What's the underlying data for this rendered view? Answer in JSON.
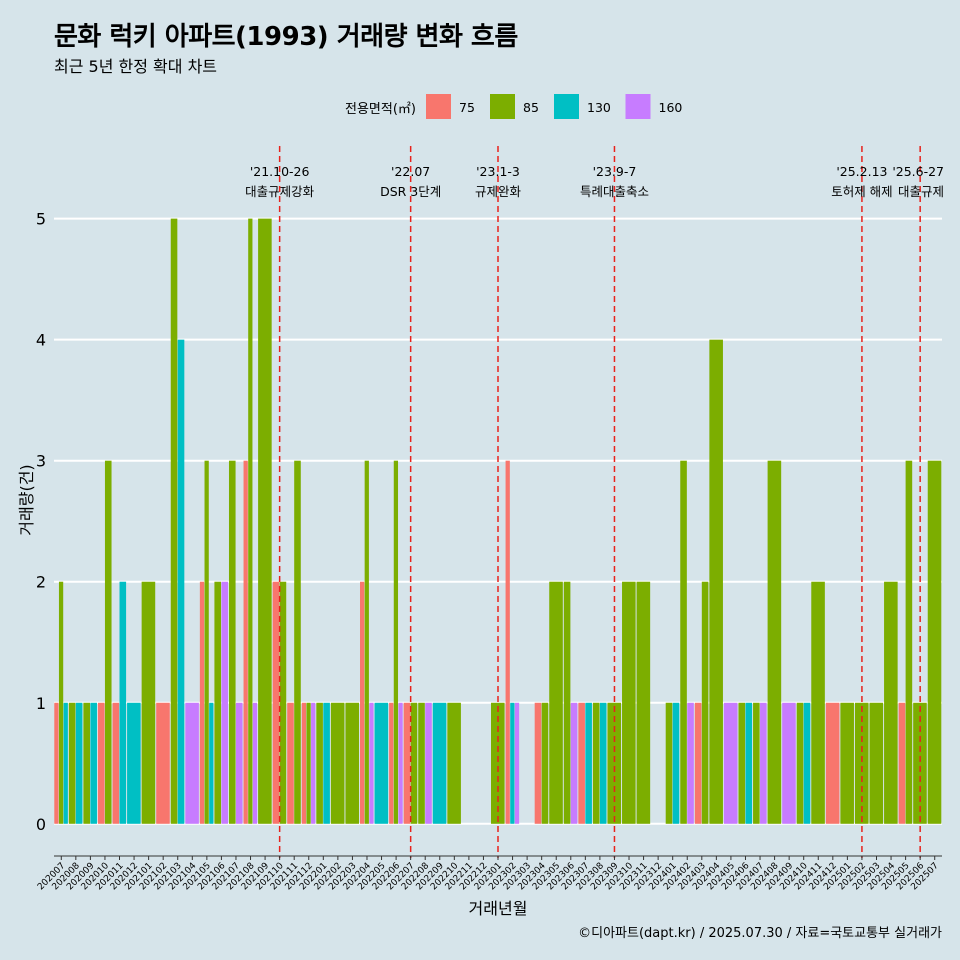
{
  "header": {
    "title": "문화 럭키 아파트(1993) 거래량 변화 흐름",
    "subtitle": "최근 5년 한정 확대 차트"
  },
  "caption": "©디아파트(dapt.kr) / 2025.07.30 / 자료=국토교통부 실거래가",
  "chart_data": {
    "type": "bar",
    "xlabel": "거래년월",
    "ylabel": "거래량(건)",
    "ylim": [
      -0.2,
      5.6
    ],
    "yticks": [
      0,
      1,
      2,
      3,
      4,
      5
    ],
    "grid": "horizontal",
    "legend": {
      "title": "전용면적(㎡)",
      "placement": "top"
    },
    "series": [
      {
        "name": "75",
        "color": "#f8766d"
      },
      {
        "name": "85",
        "color": "#7cae00"
      },
      {
        "name": "130",
        "color": "#00bfc4"
      },
      {
        "name": "160",
        "color": "#c77cff"
      }
    ],
    "categories": [
      "202007",
      "202008",
      "202009",
      "202010",
      "202011",
      "202012",
      "202101",
      "202102",
      "202103",
      "202104",
      "202105",
      "202106",
      "202107",
      "202108",
      "202109",
      "202110",
      "202111",
      "202112",
      "202201",
      "202202",
      "202203",
      "202204",
      "202205",
      "202206",
      "202207",
      "202208",
      "202209",
      "202210",
      "202211",
      "202212",
      "202301",
      "202302",
      "202303",
      "202304",
      "202305",
      "202306",
      "202307",
      "202308",
      "202309",
      "202310",
      "202311",
      "202312",
      "202401",
      "202402",
      "202403",
      "202404",
      "202405",
      "202406",
      "202407",
      "202408",
      "202409",
      "202410",
      "202411",
      "202412",
      "202501",
      "202502",
      "202503",
      "202504",
      "202505",
      "202506",
      "202507"
    ],
    "data": [
      {
        "month": "202007",
        "values": [
          1,
          2,
          1,
          0
        ]
      },
      {
        "month": "202008",
        "values": [
          0,
          1,
          1,
          0
        ]
      },
      {
        "month": "202009",
        "values": [
          0,
          1,
          1,
          0
        ]
      },
      {
        "month": "202010",
        "values": [
          1,
          3,
          0,
          0
        ]
      },
      {
        "month": "202011",
        "values": [
          1,
          0,
          2,
          0
        ]
      },
      {
        "month": "202012",
        "values": [
          0,
          0,
          1,
          0
        ]
      },
      {
        "month": "202101",
        "values": [
          0,
          2,
          0,
          0
        ]
      },
      {
        "month": "202102",
        "values": [
          1,
          0,
          0,
          0
        ]
      },
      {
        "month": "202103",
        "values": [
          0,
          5,
          4,
          0
        ]
      },
      {
        "month": "202104",
        "values": [
          0,
          0,
          0,
          1
        ]
      },
      {
        "month": "202105",
        "values": [
          2,
          3,
          1,
          0
        ]
      },
      {
        "month": "202106",
        "values": [
          0,
          2,
          0,
          2
        ]
      },
      {
        "month": "202107",
        "values": [
          0,
          3,
          0,
          1
        ]
      },
      {
        "month": "202108",
        "values": [
          3,
          5,
          0,
          1
        ]
      },
      {
        "month": "202109",
        "values": [
          0,
          5,
          0,
          0
        ]
      },
      {
        "month": "202110",
        "values": [
          2,
          2,
          0,
          0
        ]
      },
      {
        "month": "202111",
        "values": [
          1,
          3,
          0,
          0
        ]
      },
      {
        "month": "202112",
        "values": [
          1,
          1,
          0,
          1
        ]
      },
      {
        "month": "202201",
        "values": [
          0,
          1,
          1,
          0
        ]
      },
      {
        "month": "202202",
        "values": [
          0,
          1,
          0,
          0
        ]
      },
      {
        "month": "202203",
        "values": [
          0,
          1,
          0,
          0
        ]
      },
      {
        "month": "202204",
        "values": [
          2,
          3,
          0,
          1
        ]
      },
      {
        "month": "202205",
        "values": [
          0,
          0,
          1,
          0
        ]
      },
      {
        "month": "202206",
        "values": [
          1,
          3,
          0,
          1
        ]
      },
      {
        "month": "202207",
        "values": [
          1,
          1,
          0,
          0
        ]
      },
      {
        "month": "202208",
        "values": [
          0,
          1,
          0,
          1
        ]
      },
      {
        "month": "202209",
        "values": [
          0,
          0,
          1,
          0
        ]
      },
      {
        "month": "202210",
        "values": [
          0,
          1,
          0,
          0
        ]
      },
      {
        "month": "202211",
        "values": [
          0,
          0,
          0,
          0
        ]
      },
      {
        "month": "202212",
        "values": [
          0,
          0,
          0,
          0
        ]
      },
      {
        "month": "202301",
        "values": [
          0,
          1,
          0,
          0
        ]
      },
      {
        "month": "202302",
        "values": [
          3,
          0,
          1,
          1
        ]
      },
      {
        "month": "202303",
        "values": [
          0,
          0,
          0,
          0
        ]
      },
      {
        "month": "202304",
        "values": [
          1,
          1,
          0,
          0
        ]
      },
      {
        "month": "202305",
        "values": [
          0,
          2,
          0,
          0
        ]
      },
      {
        "month": "202306",
        "values": [
          0,
          2,
          0,
          1
        ]
      },
      {
        "month": "202307",
        "values": [
          1,
          0,
          1,
          0
        ]
      },
      {
        "month": "202308",
        "values": [
          0,
          1,
          1,
          0
        ]
      },
      {
        "month": "202309",
        "values": [
          0,
          1,
          0,
          0
        ]
      },
      {
        "month": "202310",
        "values": [
          0,
          2,
          0,
          0
        ]
      },
      {
        "month": "202311",
        "values": [
          0,
          2,
          0,
          0
        ]
      },
      {
        "month": "202312",
        "values": [
          0,
          0,
          0,
          0
        ]
      },
      {
        "month": "202401",
        "values": [
          0,
          1,
          1,
          0
        ]
      },
      {
        "month": "202402",
        "values": [
          0,
          3,
          0,
          1
        ]
      },
      {
        "month": "202403",
        "values": [
          1,
          2,
          0,
          0
        ]
      },
      {
        "month": "202404",
        "values": [
          0,
          4,
          0,
          0
        ]
      },
      {
        "month": "202405",
        "values": [
          0,
          0,
          0,
          1
        ]
      },
      {
        "month": "202406",
        "values": [
          0,
          1,
          1,
          0
        ]
      },
      {
        "month": "202407",
        "values": [
          0,
          1,
          0,
          1
        ]
      },
      {
        "month": "202408",
        "values": [
          0,
          3,
          0,
          0
        ]
      },
      {
        "month": "202409",
        "values": [
          0,
          0,
          0,
          1
        ]
      },
      {
        "month": "202410",
        "values": [
          0,
          1,
          1,
          0
        ]
      },
      {
        "month": "202411",
        "values": [
          0,
          2,
          0,
          0
        ]
      },
      {
        "month": "202412",
        "values": [
          1,
          0,
          0,
          0
        ]
      },
      {
        "month": "202501",
        "values": [
          0,
          1,
          0,
          0
        ]
      },
      {
        "month": "202502",
        "values": [
          0,
          1,
          0,
          0
        ]
      },
      {
        "month": "202503",
        "values": [
          0,
          1,
          0,
          0
        ]
      },
      {
        "month": "202504",
        "values": [
          0,
          2,
          0,
          0
        ]
      },
      {
        "month": "202505",
        "values": [
          1,
          3,
          0,
          0
        ]
      },
      {
        "month": "202506",
        "values": [
          0,
          1,
          0,
          0
        ]
      },
      {
        "month": "202507",
        "values": [
          0,
          3,
          0,
          0
        ]
      }
    ],
    "events": [
      {
        "month": "202110",
        "date": "'21.10-26",
        "label": "대출규제강화"
      },
      {
        "month": "202207",
        "date": "'22.07",
        "label": "DSR 3단계"
      },
      {
        "month": "202301",
        "date": "'23.1-3",
        "label": "규제완화"
      },
      {
        "month": "202309",
        "date": "'23.9-7",
        "label": "특례대출축소"
      },
      {
        "month": "202502",
        "date": "'25.2.13",
        "label": "토허제 해제"
      },
      {
        "month": "202506",
        "date": "'25.6-27",
        "label": "대출규제"
      }
    ]
  }
}
